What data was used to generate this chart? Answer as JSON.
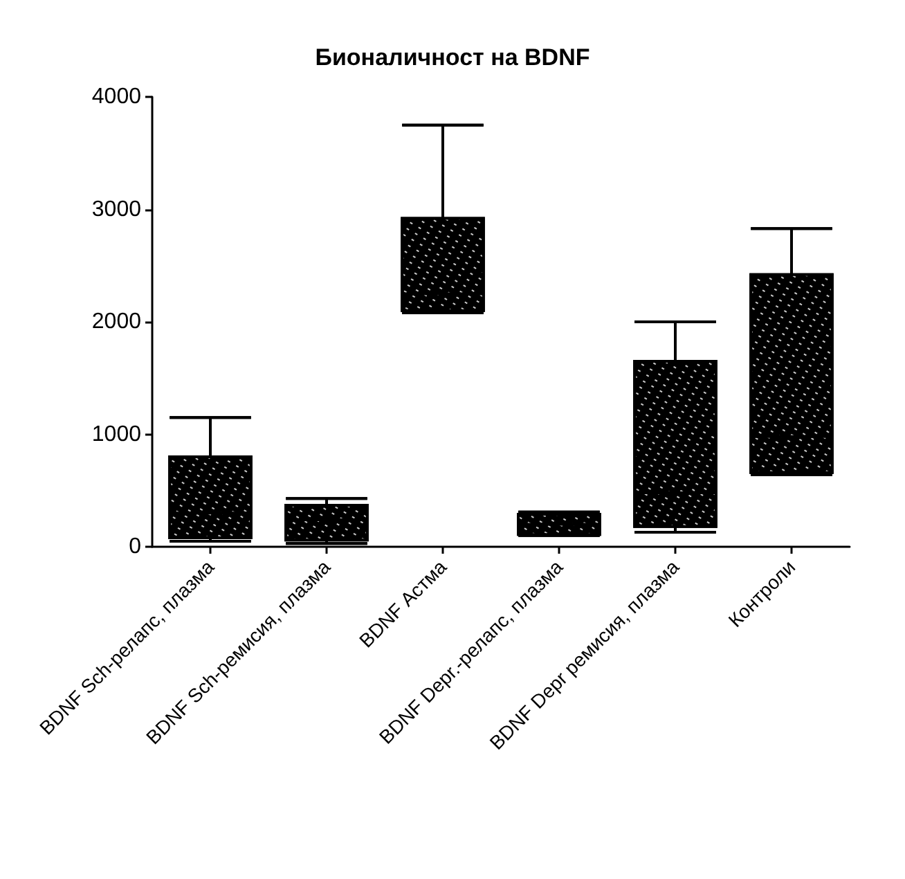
{
  "chart_data": {
    "type": "box",
    "title": "Бионаличност на BDNF",
    "categories": [
      "BDNF Sch-релапс, плазма",
      "BDNF Sch-ремисия, плазма",
      "BDNF Астма",
      "BDNF Depr.-релапс, плазма",
      "BDNF Depr ремисия, плазма",
      "Контроли"
    ],
    "boxes": [
      {
        "low": 50,
        "q1": 80,
        "median": 300,
        "q3": 800,
        "high": 1150
      },
      {
        "low": 30,
        "q1": 60,
        "median": 240,
        "q3": 370,
        "high": 430
      },
      {
        "low": 2080,
        "q1": 2100,
        "median": 2250,
        "q3": 2920,
        "high": 3750
      },
      {
        "low": 100,
        "q1": 110,
        "median": 200,
        "q3": 290,
        "high": 310
      },
      {
        "low": 130,
        "q1": 180,
        "median": 480,
        "q3": 1650,
        "high": 2000
      },
      {
        "low": 640,
        "q1": 660,
        "median": 980,
        "q3": 2420,
        "high": 2830
      }
    ],
    "color": "#000000",
    "ylim": [
      0,
      4000
    ],
    "yticks": [
      0,
      1000,
      2000,
      3000,
      4000
    ],
    "grid": false
  }
}
